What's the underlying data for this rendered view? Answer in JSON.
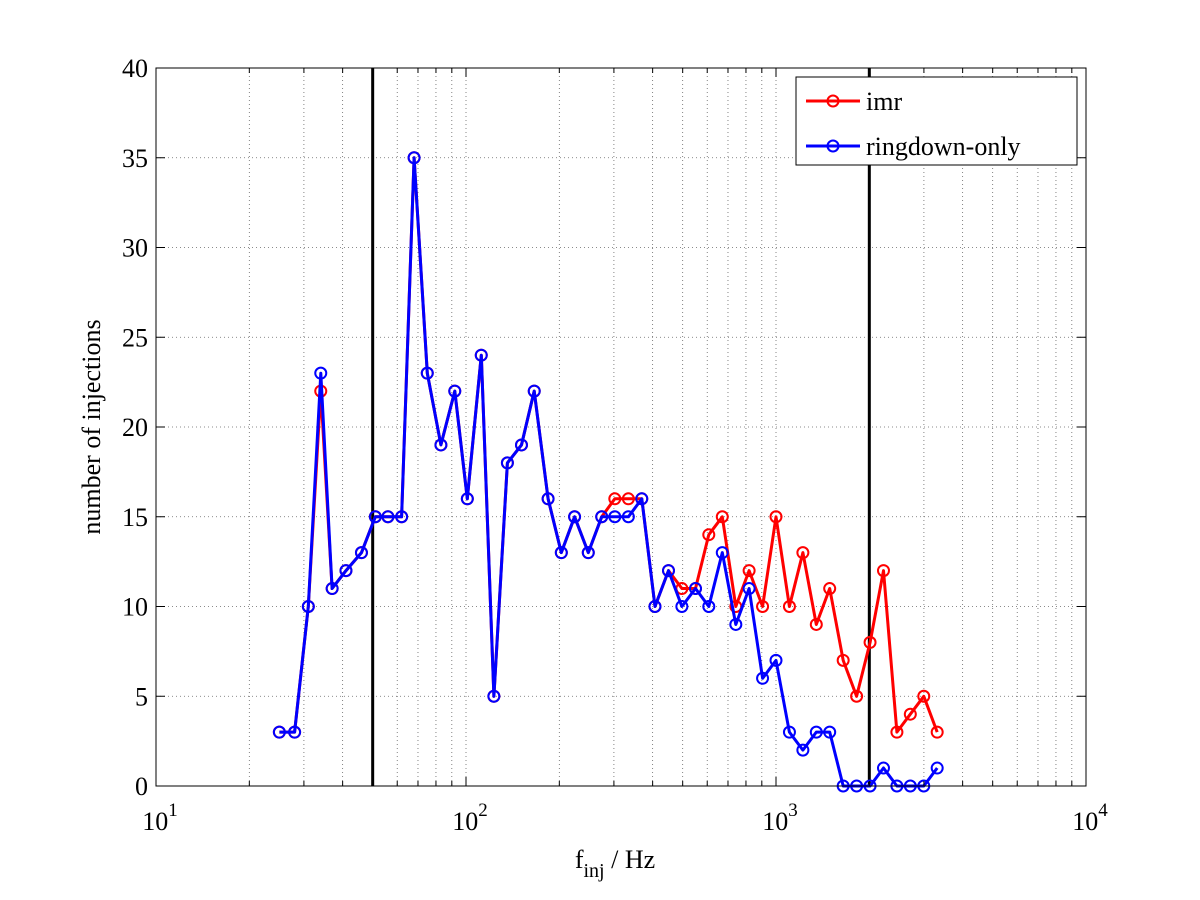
{
  "chart_data": {
    "type": "line",
    "title": "",
    "xlabel": "f",
    "xlabel_sub": "inj",
    "xlabel_unit": " / Hz",
    "ylabel": "number of injections",
    "xscale": "log",
    "xlim": [
      10,
      10000
    ],
    "ylim": [
      0,
      40
    ],
    "xticks": [
      {
        "value": 10,
        "base": "10",
        "exp": "1"
      },
      {
        "value": 100,
        "base": "10",
        "exp": "2"
      },
      {
        "value": 1000,
        "base": "10",
        "exp": "3"
      },
      {
        "value": 10000,
        "base": "10",
        "exp": "4"
      }
    ],
    "yticks": [
      0,
      5,
      10,
      15,
      20,
      25,
      30,
      35,
      40
    ],
    "grid": true,
    "legend_position": "top-right",
    "vertical_lines": [
      50,
      2000
    ],
    "x": [
      25,
      28,
      31,
      34,
      37,
      41,
      46,
      51,
      56,
      62,
      68,
      75,
      83,
      92,
      101,
      112,
      123,
      136,
      151,
      166,
      184,
      203,
      224,
      248,
      274,
      302,
      334,
      369,
      407,
      450,
      497,
      550,
      607,
      671,
      742,
      819,
      905,
      1000,
      1105,
      1221,
      1349,
      1490,
      1647,
      1820,
      2011,
      2222,
      2455,
      2712,
      2997,
      3311
    ],
    "series": [
      {
        "name": "imr",
        "color": "#ff0000",
        "values": [
          3,
          3,
          10,
          22,
          11,
          12,
          13,
          15,
          15,
          15,
          35,
          23,
          19,
          22,
          16,
          24,
          5,
          18,
          19,
          22,
          16,
          13,
          15,
          13,
          15,
          16,
          16,
          16,
          10,
          12,
          11,
          11,
          14,
          15,
          10,
          12,
          10,
          15,
          10,
          13,
          9,
          11,
          7,
          5,
          8,
          12,
          3,
          4,
          5,
          3
        ]
      },
      {
        "name": "ringdown-only",
        "color": "#0000ff",
        "values": [
          3,
          3,
          10,
          23,
          11,
          12,
          13,
          15,
          15,
          15,
          35,
          23,
          19,
          22,
          16,
          24,
          5,
          18,
          19,
          22,
          16,
          13,
          15,
          13,
          15,
          15,
          15,
          16,
          10,
          12,
          10,
          11,
          10,
          13,
          9,
          11,
          6,
          7,
          3,
          2,
          3,
          3,
          0,
          0,
          0,
          1,
          0,
          0,
          0,
          1
        ]
      }
    ]
  }
}
